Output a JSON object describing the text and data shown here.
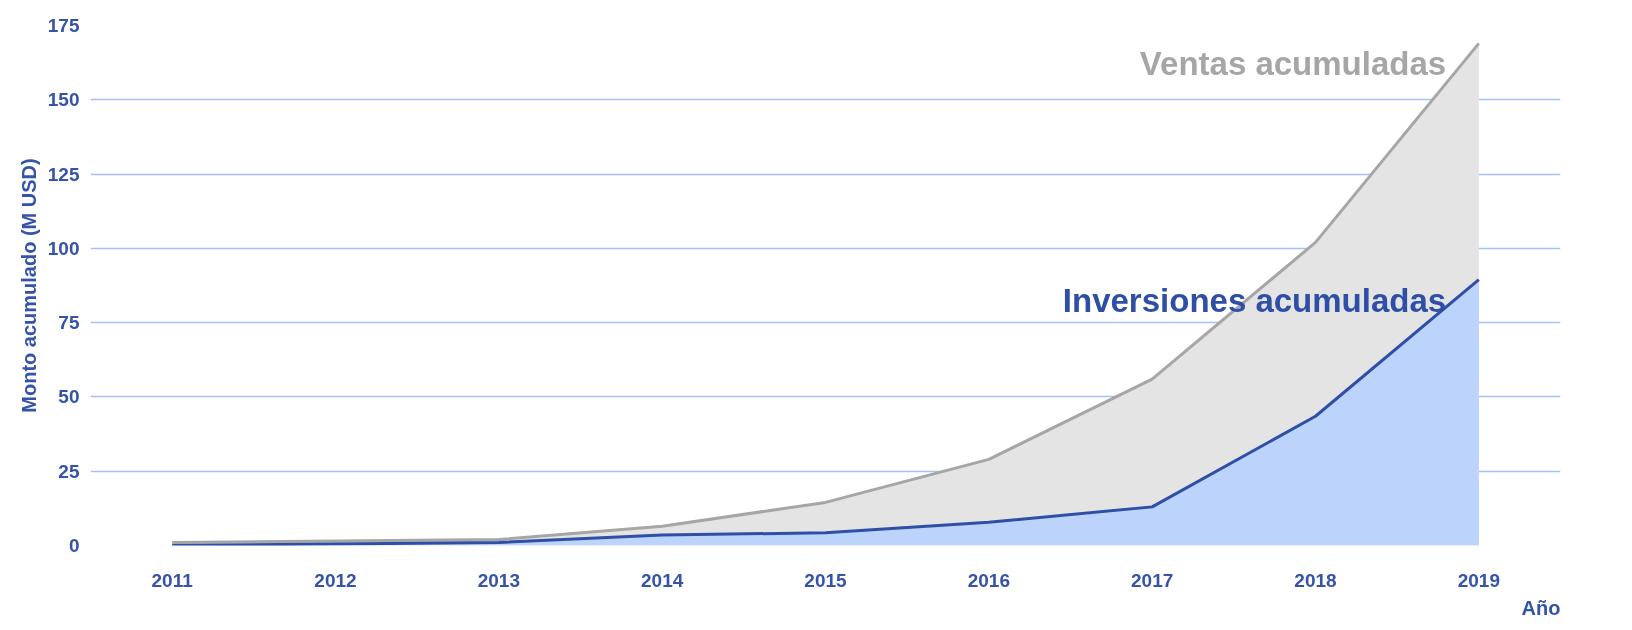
{
  "chart_data": {
    "type": "area",
    "xlabel": "Año",
    "ylabel": "Monto acumulado (M USD)",
    "categories": [
      "2011",
      "2012",
      "2013",
      "2014",
      "2015",
      "2016",
      "2017",
      "2018",
      "2019"
    ],
    "series": [
      {
        "name": "Ventas acumuladas",
        "color": "#a6a6a6",
        "values": [
          1,
          1.5,
          2,
          6.5,
          14.5,
          29,
          56,
          102,
          169
        ]
      },
      {
        "name": "Inversiones acumuladas",
        "color": "#2f4fa6",
        "values": [
          0,
          0.5,
          1,
          3.5,
          4.3,
          7.8,
          13,
          43.5,
          89.5
        ]
      }
    ],
    "ylim": [
      0,
      175
    ],
    "yticks": [
      0,
      25,
      50,
      75,
      100,
      125,
      150,
      175
    ],
    "grid": "y"
  }
}
